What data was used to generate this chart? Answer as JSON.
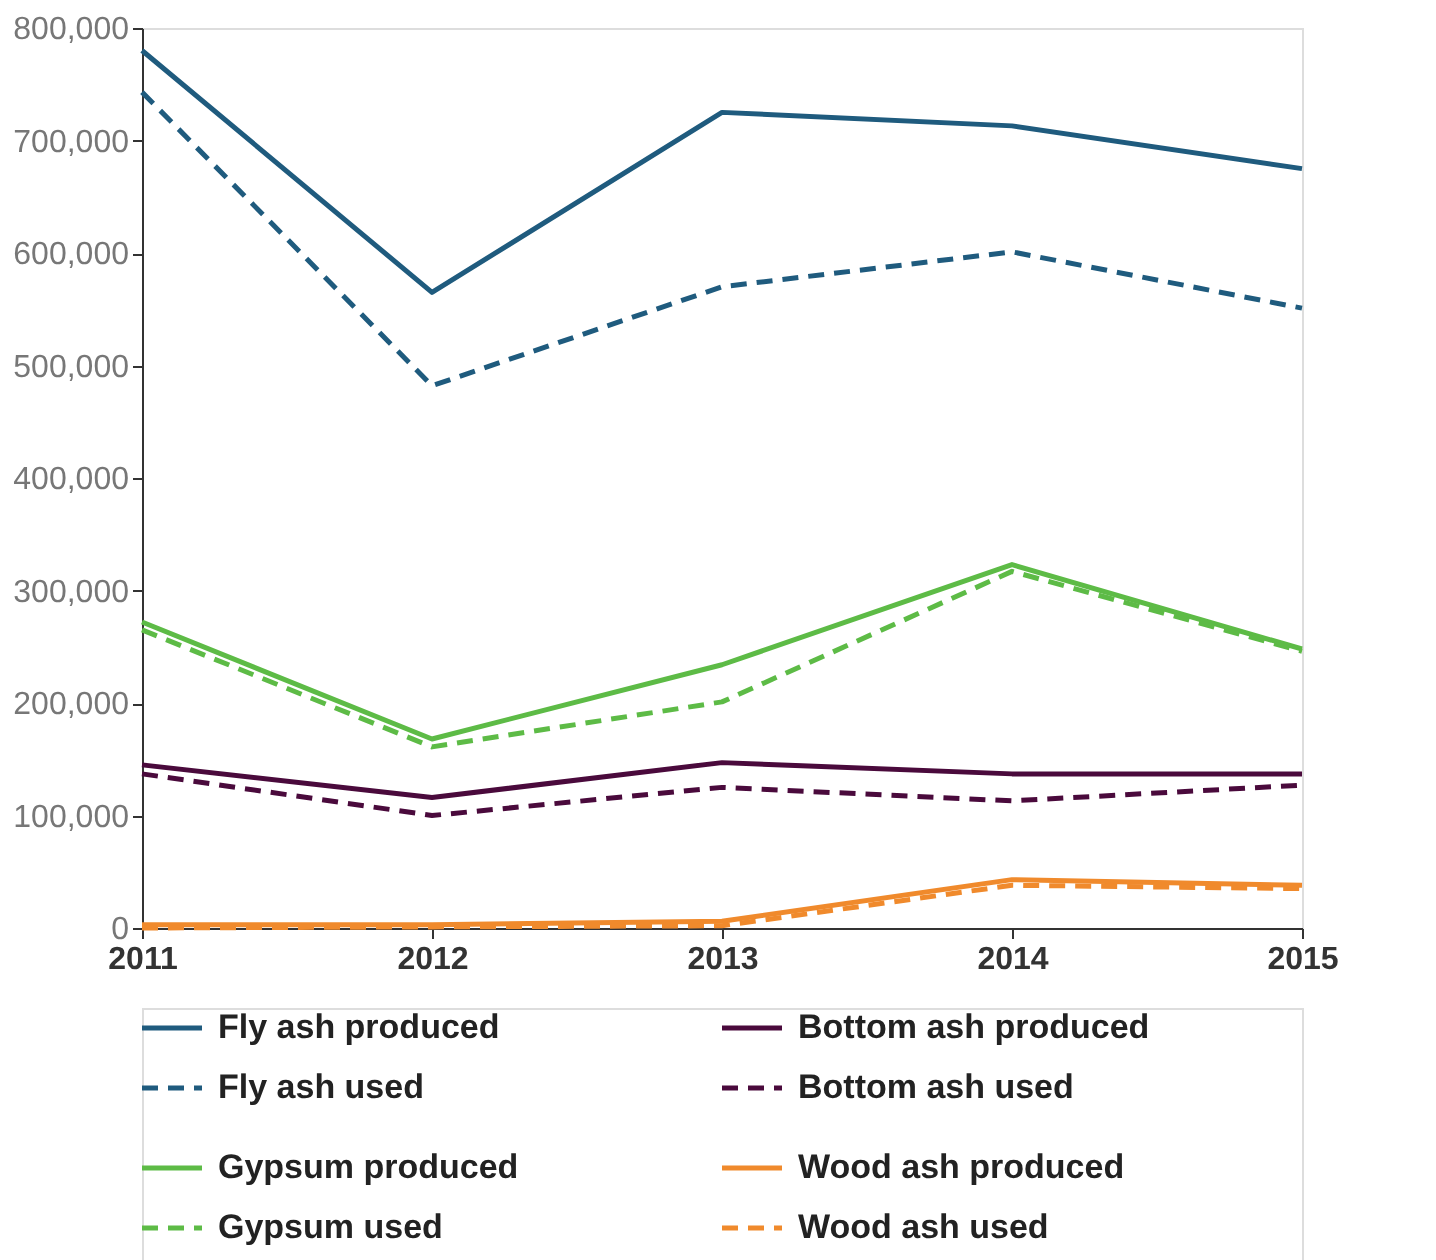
{
  "chart_data": {
    "type": "line",
    "categories": [
      "2011",
      "2012",
      "2013",
      "2014",
      "2015"
    ],
    "ylim": [
      0,
      800000
    ],
    "yticks": [
      {
        "value": 0,
        "label": "0"
      },
      {
        "value": 100000,
        "label": "100,000"
      },
      {
        "value": 200000,
        "label": "200,000"
      },
      {
        "value": 300000,
        "label": "300,000"
      },
      {
        "value": 400000,
        "label": "400,000"
      },
      {
        "value": 500000,
        "label": "500,000"
      },
      {
        "value": 600000,
        "label": "600,000"
      },
      {
        "value": 700000,
        "label": "700,000"
      },
      {
        "value": 800000,
        "label": "800,000"
      }
    ],
    "grid": false,
    "legend": "bottom",
    "marker": "none",
    "series": [
      {
        "name": "Fly ash produced",
        "color": "#1f5b7e",
        "line_style": "solid",
        "values": [
          780000,
          565000,
          725000,
          713000,
          675000
        ]
      },
      {
        "name": "Bottom ash produced",
        "color": "#4a0a3c",
        "line_style": "solid",
        "values": [
          145000,
          116000,
          147000,
          137000,
          137000
        ]
      },
      {
        "name": "Fly ash used",
        "color": "#1f5b7e",
        "line_style": "dashed",
        "values": [
          743000,
          482000,
          570000,
          601000,
          551000
        ]
      },
      {
        "name": "Bottom ash used",
        "color": "#4a0a3c",
        "line_style": "dashed",
        "values": [
          137000,
          100000,
          125000,
          113000,
          127000
        ]
      },
      {
        "name": "Gypsum produced",
        "color": "#5dbb46",
        "line_style": "solid",
        "values": [
          272000,
          168000,
          234000,
          323000,
          248000
        ]
      },
      {
        "name": "Wood ash produced",
        "color": "#f08a2c",
        "line_style": "solid",
        "values": [
          3000,
          3000,
          6000,
          43000,
          38000
        ]
      },
      {
        "name": "Gypsum used",
        "color": "#5dbb46",
        "line_style": "dashed",
        "values": [
          265000,
          161000,
          201000,
          317000,
          246000
        ]
      },
      {
        "name": "Wood ash used",
        "color": "#f08a2c",
        "line_style": "dashed",
        "values": [
          0,
          1000,
          2000,
          38000,
          35000
        ]
      }
    ]
  }
}
